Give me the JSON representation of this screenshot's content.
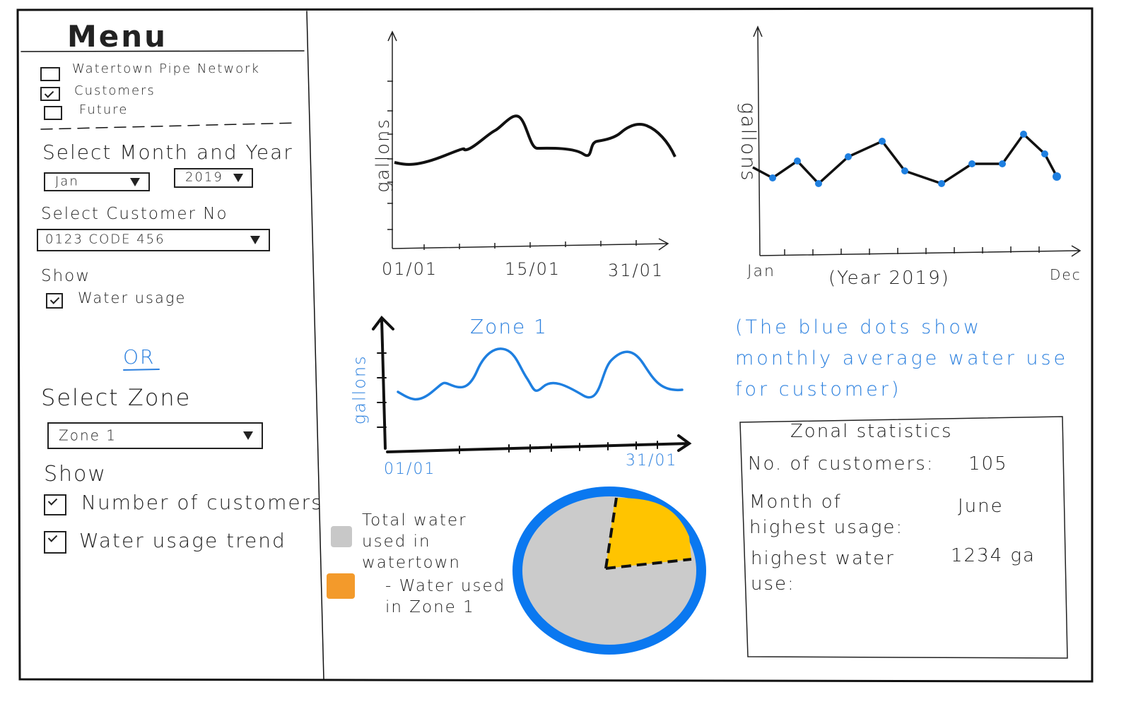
{
  "menu": {
    "title": "Menu",
    "layers": [
      {
        "label": "Watertown Pipe Network",
        "checked": false
      },
      {
        "label": "Customers",
        "checked": true
      },
      {
        "label": "Future",
        "checked": false
      }
    ],
    "month_year": {
      "label": "Select Month and Year",
      "month": "Jan",
      "year": "2019"
    },
    "customer": {
      "label": "Select Customer No",
      "value": "0123 CODE 456"
    },
    "customer_show": {
      "label": "Show",
      "options": [
        {
          "label": "Water usage",
          "checked": true
        }
      ]
    },
    "or": "OR",
    "zone": {
      "label": "Select Zone",
      "value": "Zone 1"
    },
    "zone_show": {
      "label": "Show",
      "options": [
        {
          "label": "Number of customers",
          "checked": true
        },
        {
          "label": "Water usage trend",
          "checked": true
        }
      ]
    }
  },
  "daily_chart": {
    "y_label": "gallons",
    "x_labels": [
      "01/01",
      "15/01",
      "31/01"
    ]
  },
  "monthly_chart": {
    "y_label": "gallons",
    "x_start": "Jan",
    "x_caption": "(Year 2019)",
    "x_end": "Dec",
    "note": "(The blue dots show monthly average water use for customer)"
  },
  "zone_chart": {
    "title": "Zone 1",
    "y_label": "gallons",
    "x_labels": [
      "01/01",
      "31/01"
    ]
  },
  "pie_legend": [
    {
      "label": "Total water used in watertown",
      "color": "#c8c8c8"
    },
    {
      "label": "- Water used in Zone 1",
      "color": "#f39a2b"
    }
  ],
  "zonal_statistics": {
    "title": "Zonal statistics",
    "rows": [
      {
        "label": "No. of customers:",
        "value": "105"
      },
      {
        "label": "Month of highest usage:",
        "value": "June"
      },
      {
        "label": "highest water use:",
        "value": "1234 ga"
      }
    ]
  }
}
